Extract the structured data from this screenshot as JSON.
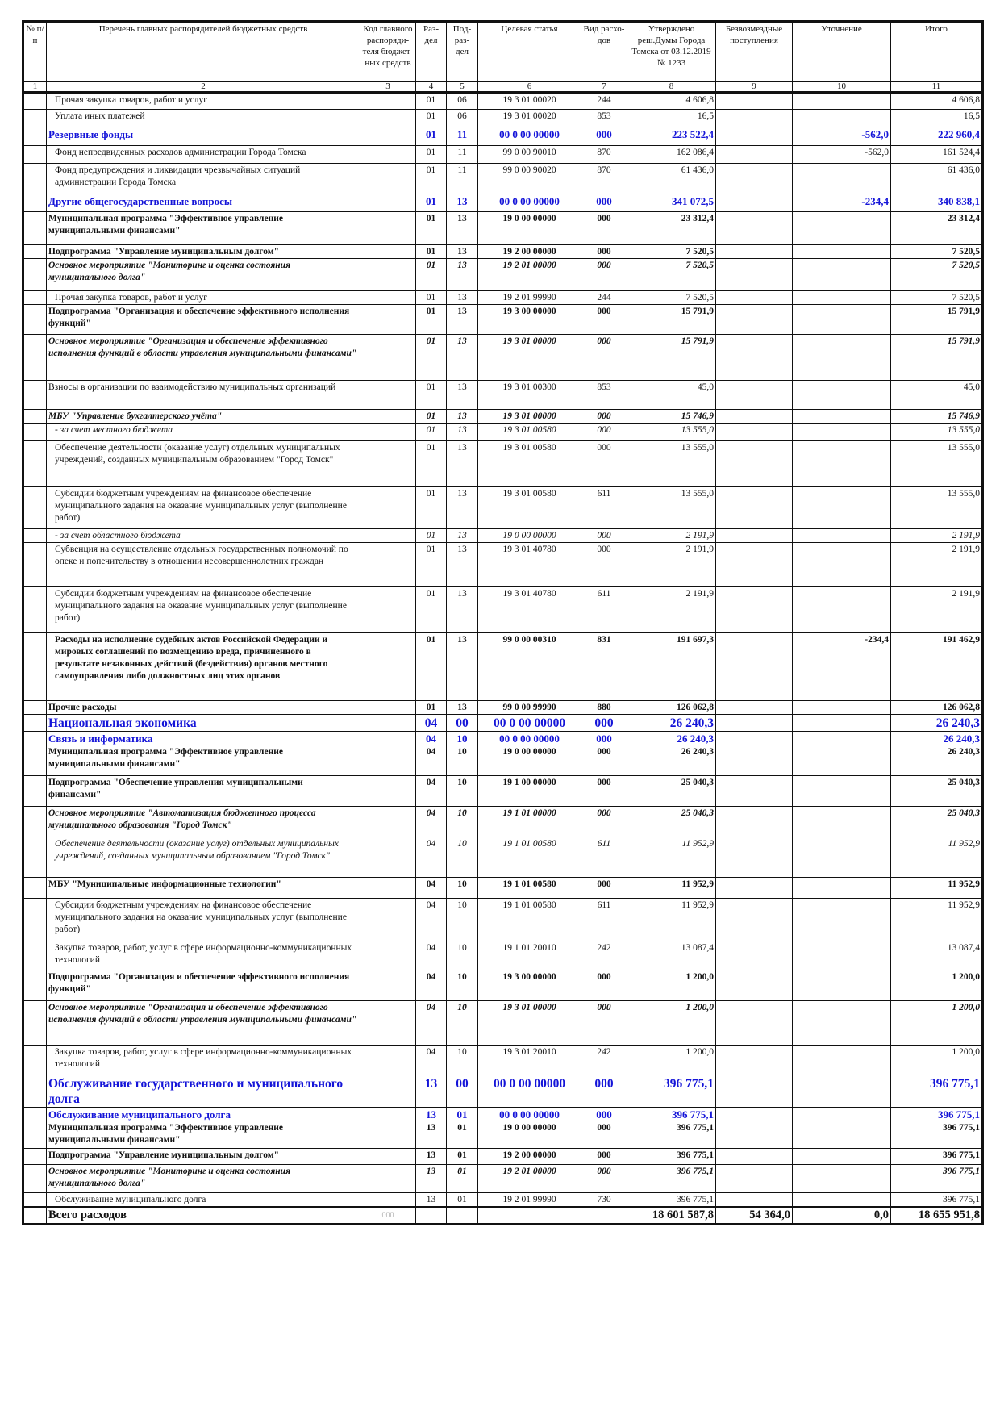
{
  "header": [
    "№ п/п",
    "Перечень главных распорядителей бюджетных средств",
    "Код главного распоряди-теля бюджет-ных средств",
    "Раз-дел",
    "Под-раз-дел",
    "Целевая статья",
    "Вид расхо-дов",
    "Утверждено реш.Думы Города Томска от 03.12.2019 № 1233",
    "Безвозмездные поступления",
    "Уточнение",
    "Итого"
  ],
  "column_numbers": [
    "1",
    "2",
    "3",
    "4",
    "5",
    "6",
    "7",
    "8",
    "9",
    "10",
    "11"
  ],
  "rows": [
    [
      "",
      "Прочая закупка товаров, работ и услуг",
      "",
      "01",
      "06",
      "19 3 01 00020",
      "244",
      "4 606,8",
      "",
      "",
      "4 606,8"
    ],
    [
      "",
      "Уплата иных платежей",
      "",
      "01",
      "06",
      "19 3 01 00020",
      "853",
      "16,5",
      "",
      "",
      "16,5"
    ],
    [
      "",
      "Резервные фонды",
      "",
      "01",
      "11",
      "00 0 00 00000",
      "000",
      "223 522,4",
      "",
      "-562,0",
      "222 960,4"
    ],
    [
      "",
      "Фонд непредвиденных расходов администрации Города Томска",
      "",
      "01",
      "11",
      "99 0 00 90010",
      "870",
      "162 086,4",
      "",
      "-562,0",
      "161 524,4"
    ],
    [
      "",
      "Фонд предупреждения и ликвидации чрезвычайных ситуаций администрации Города Томска",
      "",
      "01",
      "11",
      "99 0 00 90020",
      "870",
      "61 436,0",
      "",
      "",
      "61 436,0"
    ],
    [
      "",
      "Другие общегосударственные вопросы",
      "",
      "01",
      "13",
      "00 0 00 00000",
      "000",
      "341 072,5",
      "",
      "-234,4",
      "340 838,1"
    ],
    [
      "",
      "Муниципальная программа \"Эффективное управление муниципальными финансами\"",
      "",
      "01",
      "13",
      "19 0 00 00000",
      "000",
      "23 312,4",
      "",
      "",
      "23 312,4"
    ],
    [
      "",
      "Подпрограмма \"Управление муниципальным долгом\"",
      "",
      "01",
      "13",
      "19 2 00 00000",
      "000",
      "7 520,5",
      "",
      "",
      "7 520,5"
    ],
    [
      "",
      "Основное мероприятие \"Мониторинг и оценка состояния муниципального долга\"",
      "",
      "01",
      "13",
      "19 2 01 00000",
      "000",
      "7 520,5",
      "",
      "",
      "7 520,5"
    ],
    [
      "",
      "Прочая закупка товаров, работ и услуг",
      "",
      "01",
      "13",
      "19 2 01 99990",
      "244",
      "7 520,5",
      "",
      "",
      "7 520,5"
    ],
    [
      "",
      "Подпрограмма \"Организация и обеспечение эффективного исполнения функций\"",
      "",
      "01",
      "13",
      "19 3 00 00000",
      "000",
      "15 791,9",
      "",
      "",
      "15 791,9"
    ],
    [
      "",
      "Основное мероприятие \"Организация и обеспечение эффективного исполнения функций в области управления муниципальными финансами\"",
      "",
      "01",
      "13",
      "19 3 01 00000",
      "000",
      "15 791,9",
      "",
      "",
      "15 791,9"
    ],
    [
      "",
      "Взносы в организации по взаимодействию муниципальных организаций",
      "",
      "01",
      "13",
      "19 3 01 00300",
      "853",
      "45,0",
      "",
      "",
      "45,0"
    ],
    [
      "",
      "МБУ \"Управление бухгалтерского учёта\"",
      "",
      "01",
      "13",
      "19 3 01 00000",
      "000",
      "15 746,9",
      "",
      "",
      "15 746,9"
    ],
    [
      "",
      "- за счет местного бюджета",
      "",
      "01",
      "13",
      "19 3 01 00580",
      "000",
      "13 555,0",
      "",
      "",
      "13 555,0"
    ],
    [
      "",
      "Обеспечение деятельности (оказание услуг) отдельных муниципальных учреждений, созданных муниципальным образованием \"Город Томск\"",
      "",
      "01",
      "13",
      "19 3 01 00580",
      "000",
      "13 555,0",
      "",
      "",
      "13 555,0"
    ],
    [
      "",
      "Субсидии бюджетным учреждениям на финансовое обеспечение муниципального задания на оказание муниципальных услуг (выполнение работ)",
      "",
      "01",
      "13",
      "19 3 01 00580",
      "611",
      "13 555,0",
      "",
      "",
      "13 555,0"
    ],
    [
      "",
      "- за счет областного бюджета",
      "",
      "01",
      "13",
      "19 0 00 00000",
      "000",
      "2 191,9",
      "",
      "",
      "2 191,9"
    ],
    [
      "",
      "Субвенция на осуществление отдельных государственных полномочий по опеке и попечительству в отношении несовершеннолетних граждан",
      "",
      "01",
      "13",
      "19 3 01 40780",
      "000",
      "2 191,9",
      "",
      "",
      "2 191,9"
    ],
    [
      "",
      "Субсидии бюджетным учреждениям на финансовое обеспечение муниципального задания на оказание муниципальных услуг (выполнение работ)",
      "",
      "01",
      "13",
      "19 3 01 40780",
      "611",
      "2 191,9",
      "",
      "",
      "2 191,9"
    ],
    [
      "",
      "Расходы на исполнение судебных актов Российской Федерации и мировых соглашений по возмещению вреда, причиненного в результате незаконных действий (бездействия) органов местного самоуправления либо должностных лиц этих органов",
      "",
      "01",
      "13",
      "99 0 00 00310",
      "831",
      "191 697,3",
      "",
      "-234,4",
      "191 462,9"
    ],
    [
      "",
      "Прочие расходы",
      "",
      "01",
      "13",
      "99 0 00 99990",
      "880",
      "126 062,8",
      "",
      "",
      "126 062,8"
    ],
    [
      "",
      "Национальная экономика",
      "",
      "04",
      "00",
      "00 0 00 00000",
      "000",
      "26 240,3",
      "",
      "",
      "26 240,3"
    ],
    [
      "",
      "Связь и информатика",
      "",
      "04",
      "10",
      "00 0 00 00000",
      "000",
      "26 240,3",
      "",
      "",
      "26 240,3"
    ],
    [
      "",
      "Муниципальная программа \"Эффективное управление муниципальными финансами\"",
      "",
      "04",
      "10",
      "19 0 00 00000",
      "000",
      "26 240,3",
      "",
      "",
      "26 240,3"
    ],
    [
      "",
      "Подпрограмма \"Обеспечение управления муниципальными финансами\"",
      "",
      "04",
      "10",
      "19 1 00 00000",
      "000",
      "25 040,3",
      "",
      "",
      "25 040,3"
    ],
    [
      "",
      "Основное мероприятие \"Автоматизация бюджетного процесса муниципального образования \"Город Томск\"",
      "",
      "04",
      "10",
      "19 1 01 00000",
      "000",
      "25 040,3",
      "",
      "",
      "25 040,3"
    ],
    [
      "",
      "Обеспечение деятельности (оказание услуг) отдельных муниципальных учреждений, созданных муниципальным образованием \"Город Томск\"",
      "",
      "04",
      "10",
      "19 1 01 00580",
      "611",
      "11 952,9",
      "",
      "",
      "11 952,9"
    ],
    [
      "",
      "МБУ \"Муниципальные информационные технологии\"",
      "",
      "04",
      "10",
      "19 1 01 00580",
      "000",
      "11 952,9",
      "",
      "",
      "11 952,9"
    ],
    [
      "",
      "Субсидии бюджетным учреждениям на финансовое обеспечение муниципального задания на оказание муниципальных услуг (выполнение работ)",
      "",
      "04",
      "10",
      "19 1 01 00580",
      "611",
      "11 952,9",
      "",
      "",
      "11 952,9"
    ],
    [
      "",
      "Закупка товаров, работ, услуг в сфере информационно-коммуникационных технологий",
      "",
      "04",
      "10",
      "19 1 01 20010",
      "242",
      "13 087,4",
      "",
      "",
      "13 087,4"
    ],
    [
      "",
      "Подпрограмма \"Организация и обеспечение эффективного исполнения функций\"",
      "",
      "04",
      "10",
      "19 3 00 00000",
      "000",
      "1 200,0",
      "",
      "",
      "1 200,0"
    ],
    [
      "",
      "Основное мероприятие \"Организация и обеспечение эффективного исполнения функций в области управления муниципальными финансами\"",
      "",
      "04",
      "10",
      "19 3 01 00000",
      "000",
      "1 200,0",
      "",
      "",
      "1 200,0"
    ],
    [
      "",
      "Закупка товаров, работ, услуг в сфере информационно-коммуникационных технологий",
      "",
      "04",
      "10",
      "19 3 01 20010",
      "242",
      "1 200,0",
      "",
      "",
      "1 200,0"
    ],
    [
      "",
      "Обслуживание государственного и муниципального долга",
      "",
      "13",
      "00",
      "00 0 00 00000",
      "000",
      "396 775,1",
      "",
      "",
      "396 775,1"
    ],
    [
      "",
      "Обслуживание муниципального долга",
      "",
      "13",
      "01",
      "00 0 00 00000",
      "000",
      "396 775,1",
      "",
      "",
      "396 775,1"
    ],
    [
      "",
      "Муниципальная программа \"Эффективное управление муниципальными финансами\"",
      "",
      "13",
      "01",
      "19 0 00 00000",
      "000",
      "396 775,1",
      "",
      "",
      "396 775,1"
    ],
    [
      "",
      "Подпрограмма \"Управление муниципальным долгом\"",
      "",
      "13",
      "01",
      "19 2 00 00000",
      "000",
      "396 775,1",
      "",
      "",
      "396 775,1"
    ],
    [
      "",
      "Основное мероприятие \"Мониторинг и оценка состояния муниципального долга\"",
      "",
      "13",
      "01",
      "19 2 01 00000",
      "000",
      "396 775,1",
      "",
      "",
      "396 775,1"
    ],
    [
      "",
      "Обслуживание муниципального долга",
      "",
      "13",
      "01",
      "19 2 01 99990",
      "730",
      "396 775,1",
      "",
      "",
      "396 775,1"
    ],
    [
      "",
      "Всего расходов",
      "000",
      "",
      "",
      "",
      "",
      "18 601 587,8",
      "54 364,0",
      "0,0",
      "18 655 951,8"
    ]
  ],
  "colors": {
    "section_text": "#1414d8",
    "text": "#111111"
  }
}
